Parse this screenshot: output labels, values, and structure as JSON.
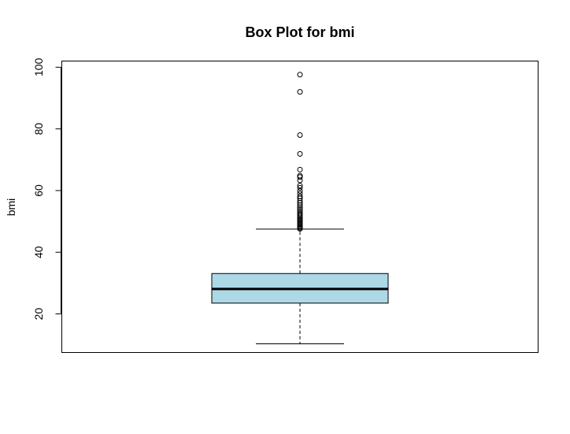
{
  "chart_data": {
    "type": "box",
    "title": "Box Plot for bmi",
    "xlabel": "",
    "ylabel": "bmi",
    "ylim": [
      7.5,
      102
    ],
    "yticks": [
      20,
      40,
      60,
      80,
      100
    ],
    "grid": false,
    "box": {
      "whisker_low": 10.3,
      "q1": 23.5,
      "median": 28.1,
      "q3": 33.1,
      "whisker_high": 47.5,
      "fill": "#add8e6"
    },
    "outliers": [
      47.6,
      47.9,
      48.2,
      48.5,
      48.9,
      49.3,
      49.7,
      50.1,
      50.5,
      50.9,
      51.3,
      51.8,
      52.3,
      52.8,
      53.4,
      54.0,
      54.6,
      55.3,
      56.0,
      56.7,
      57.5,
      58.1,
      59.0,
      59.9,
      60.9,
      61.6,
      63.3,
      64.4,
      64.8,
      66.8,
      71.9,
      78.0,
      92.0,
      97.6
    ]
  }
}
